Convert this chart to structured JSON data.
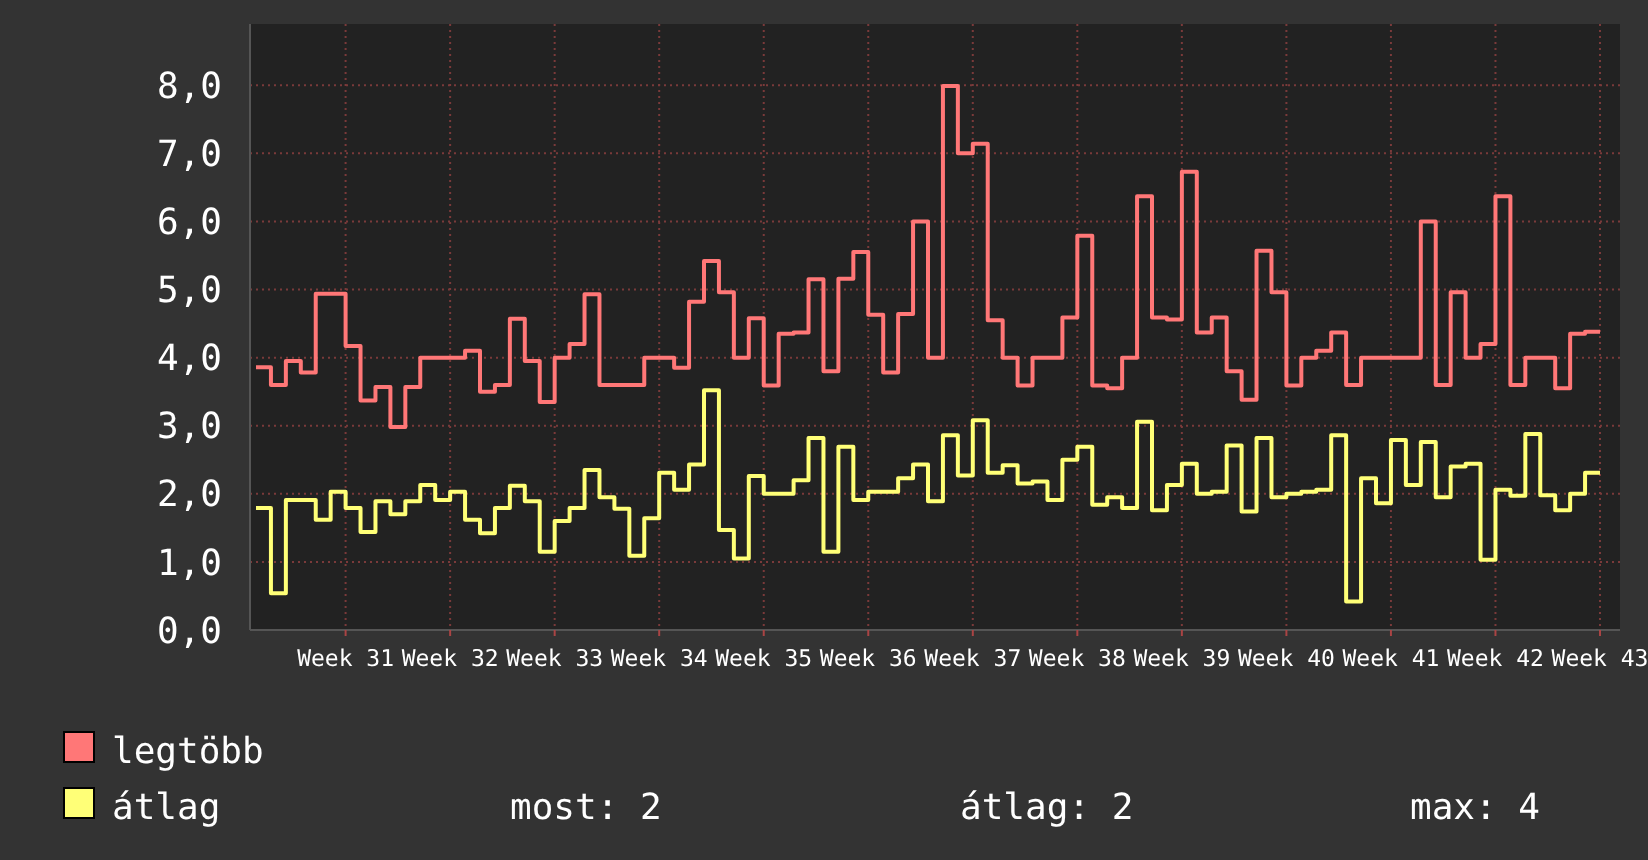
{
  "chart_data": {
    "type": "step",
    "ylim": [
      0,
      8.9
    ],
    "categories": [
      null,
      null,
      null,
      null,
      null,
      null,
      "Week 31",
      null,
      null,
      null,
      null,
      null,
      null,
      "Week 32",
      null,
      null,
      null,
      null,
      null,
      null,
      "Week 33",
      null,
      null,
      null,
      null,
      null,
      null,
      "Week 34",
      null,
      null,
      null,
      null,
      null,
      null,
      "Week 35",
      null,
      null,
      null,
      null,
      null,
      null,
      "Week 36",
      null,
      null,
      null,
      null,
      null,
      null,
      "Week 37",
      null,
      null,
      null,
      null,
      null,
      null,
      "Week 38",
      null,
      null,
      null,
      null,
      null,
      null,
      "Week 39",
      null,
      null,
      null,
      null,
      null,
      null,
      "Week 40",
      null,
      null,
      null,
      null,
      null,
      null,
      "Week 41",
      null,
      null,
      null,
      null,
      null,
      null,
      "Week 42",
      null,
      null,
      null,
      null,
      null,
      null,
      "Week 43"
    ],
    "yticks": [
      {
        "value": 0,
        "label": "0,0"
      },
      {
        "value": 1,
        "label": "1,0"
      },
      {
        "value": 2,
        "label": "2,0"
      },
      {
        "value": 3,
        "label": "3,0"
      },
      {
        "value": 4,
        "label": "4,0"
      },
      {
        "value": 5,
        "label": "5,0"
      },
      {
        "value": 6,
        "label": "6,0"
      },
      {
        "value": 7,
        "label": "7,0"
      },
      {
        "value": 8,
        "label": "8,0"
      }
    ],
    "grid": true,
    "legend": "bottom",
    "line_style": "solid",
    "marker": "none",
    "annotations": [
      "most: 2",
      "átlag: 2",
      "max: 4"
    ],
    "series": [
      {
        "name": "legtöbb",
        "color": "#ff7777",
        "values": [
          3.86,
          3.6,
          3.95,
          3.78,
          4.94,
          4.94,
          4.17,
          3.37,
          3.57,
          2.98,
          3.57,
          4.0,
          4.0,
          4.0,
          4.1,
          3.5,
          3.6,
          4.57,
          3.95,
          3.35,
          4.0,
          4.2,
          4.93,
          3.6,
          3.6,
          3.6,
          4.0,
          4.0,
          3.85,
          4.82,
          5.42,
          4.96,
          4.0,
          4.58,
          3.59,
          4.35,
          4.37,
          5.15,
          3.8,
          5.16,
          5.55,
          4.63,
          3.78,
          4.64,
          6.0,
          4.0,
          7.99,
          7.0,
          7.14,
          4.55,
          4.0,
          3.59,
          4.0,
          4.0,
          4.59,
          5.79,
          3.59,
          3.55,
          4.0,
          6.37,
          4.59,
          4.56,
          6.73,
          4.37,
          4.59,
          3.8,
          3.38,
          5.57,
          4.96,
          3.59,
          4.0,
          4.1,
          4.37,
          3.6,
          4.0,
          4.0,
          4.0,
          4.0,
          6.0,
          3.6,
          4.96,
          4.0,
          4.2,
          6.37,
          3.6,
          4.0,
          4.0,
          3.55,
          4.35,
          4.38,
          4.38
        ]
      },
      {
        "name": "átlag",
        "color": "#ffff77",
        "values": [
          1.79,
          0.54,
          1.91,
          1.91,
          1.62,
          2.03,
          1.79,
          1.44,
          1.89,
          1.7,
          1.89,
          2.13,
          1.91,
          2.03,
          1.62,
          1.42,
          1.79,
          2.12,
          1.89,
          1.15,
          1.6,
          1.79,
          2.35,
          1.95,
          1.78,
          1.09,
          1.64,
          2.31,
          2.06,
          2.43,
          3.52,
          1.47,
          1.05,
          2.26,
          2.0,
          2.0,
          2.2,
          2.82,
          1.15,
          2.69,
          1.91,
          2.03,
          2.03,
          2.23,
          2.43,
          1.89,
          2.86,
          2.27,
          3.08,
          2.31,
          2.42,
          2.15,
          2.18,
          1.91,
          2.5,
          2.69,
          1.84,
          1.95,
          1.79,
          3.06,
          1.76,
          2.13,
          2.44,
          2.0,
          2.03,
          2.71,
          1.74,
          2.82,
          1.95,
          2.0,
          2.03,
          2.06,
          2.86,
          0.42,
          2.23,
          1.86,
          2.79,
          2.13,
          2.76,
          1.95,
          2.4,
          2.44,
          1.03,
          2.06,
          1.97,
          2.88,
          1.98,
          1.76,
          2.0,
          2.31,
          2.31
        ]
      }
    ]
  }
}
